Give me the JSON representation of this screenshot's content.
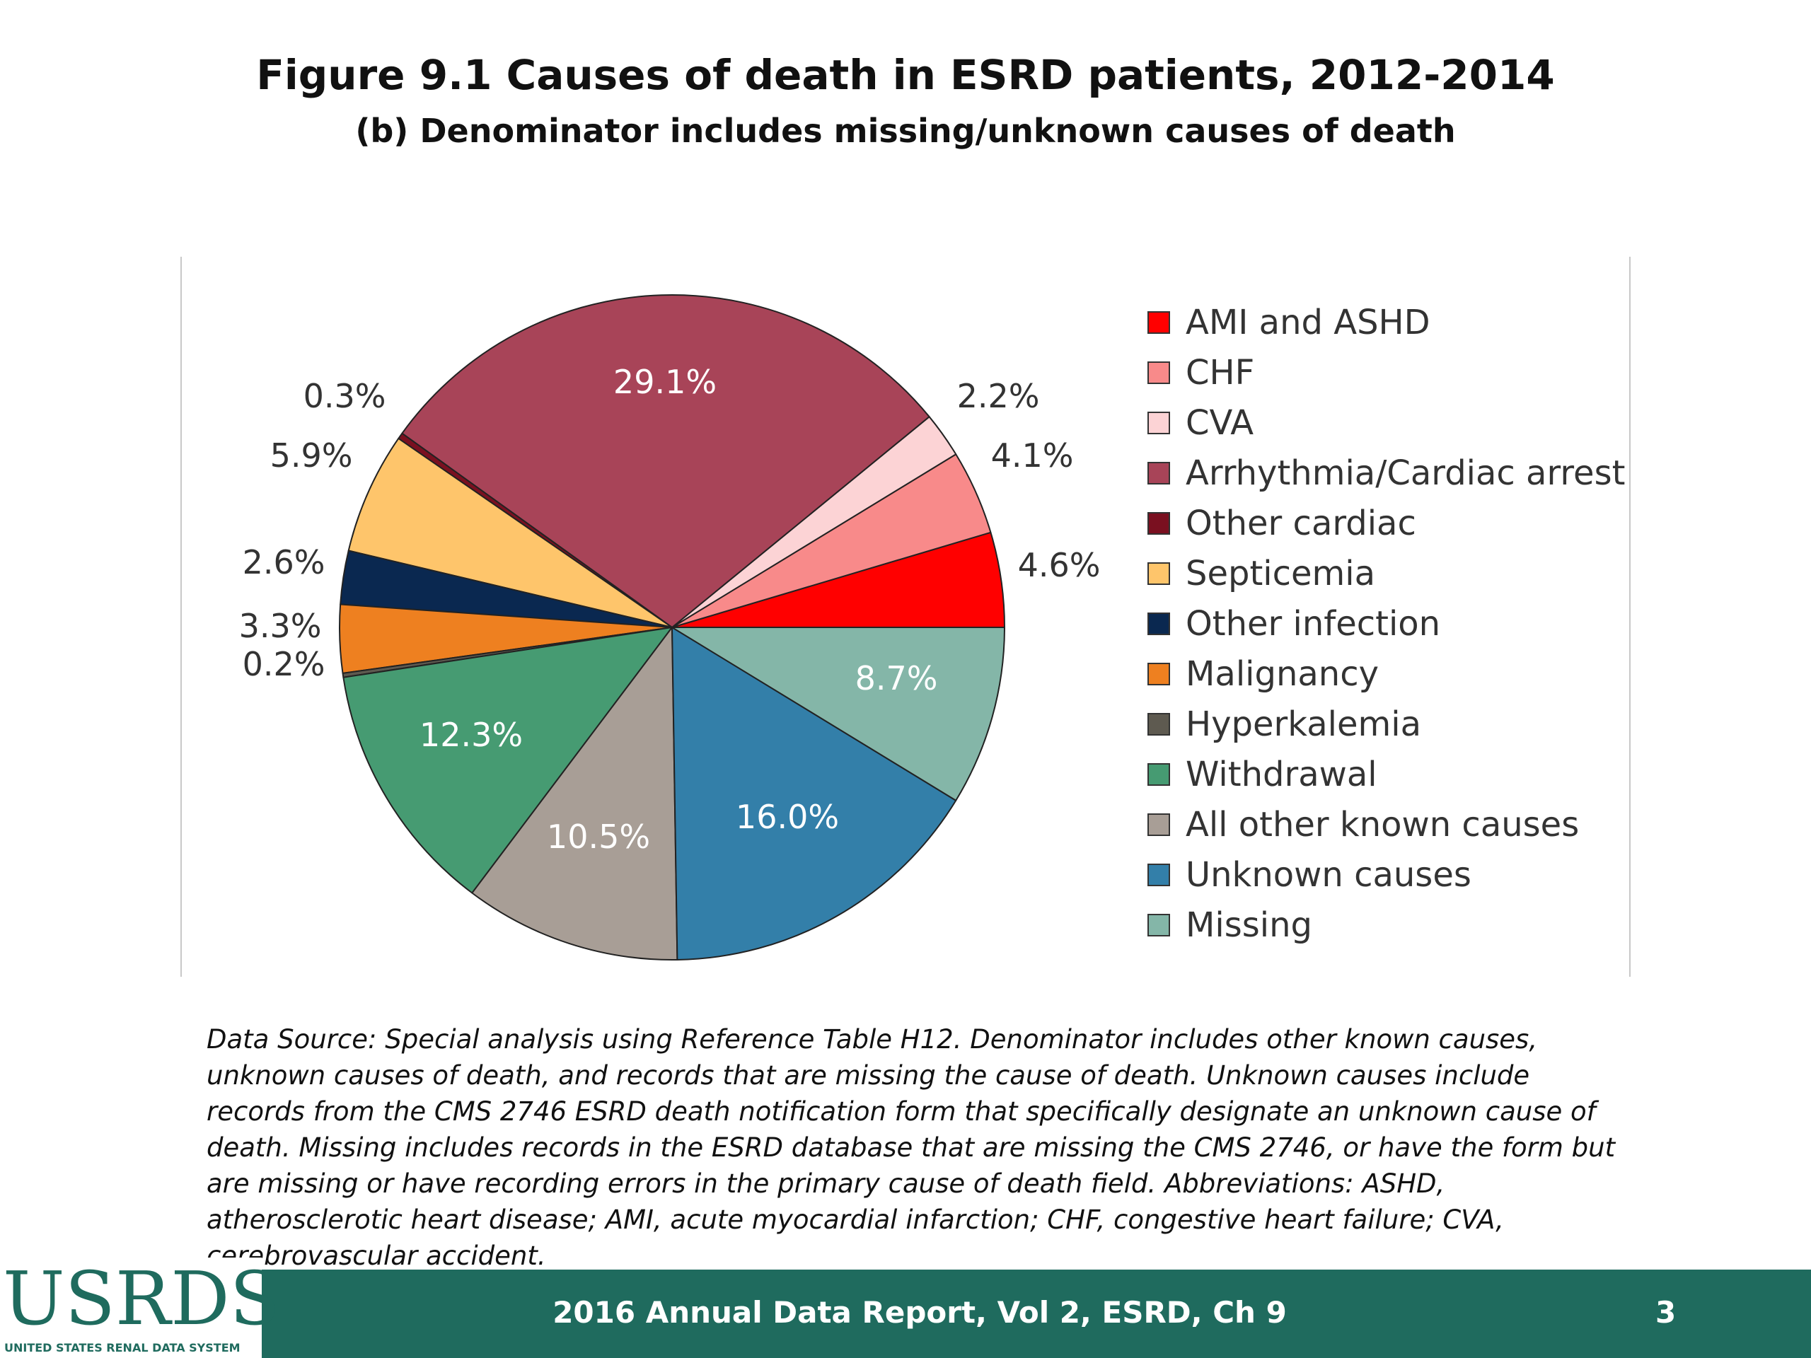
{
  "header": {
    "title": "Figure 9.1 Causes of death in ESRD patients, 2012-2014",
    "subtitle": "(b) Denominator includes missing/unknown causes of death"
  },
  "chart_data": {
    "type": "pie",
    "title": "Figure 9.1 Causes of death in ESRD patients, 2012-2014",
    "subtitle": "(b) Denominator includes missing/unknown causes of death",
    "legend_position": "right",
    "slices": [
      {
        "label": "AMI and ASHD",
        "value": 4.6,
        "value_label": "4.6%",
        "color": "#ff0000"
      },
      {
        "label": "CHF",
        "value": 4.1,
        "value_label": "4.1%",
        "color": "#f88a8a"
      },
      {
        "label": "CVA",
        "value": 2.2,
        "value_label": "2.2%",
        "color": "#fcd3d5"
      },
      {
        "label": "Arrhythmia/Cardiac arrest",
        "value": 29.1,
        "value_label": "29.1%",
        "color": "#a84458"
      },
      {
        "label": "Other cardiac",
        "value": 0.3,
        "value_label": "0.3%",
        "color": "#7a1020"
      },
      {
        "label": "Septicemia",
        "value": 5.9,
        "value_label": "5.9%",
        "color": "#fec56b"
      },
      {
        "label": "Other infection",
        "value": 2.6,
        "value_label": "2.6%",
        "color": "#0a2850"
      },
      {
        "label": "Malignancy",
        "value": 3.3,
        "value_label": "3.3%",
        "color": "#ee8020"
      },
      {
        "label": "Hyperkalemia",
        "value": 0.2,
        "value_label": "0.2%",
        "color": "#5e5a50"
      },
      {
        "label": "Withdrawal",
        "value": 12.3,
        "value_label": "12.3%",
        "color": "#469b72"
      },
      {
        "label": "All other known causes",
        "value": 10.5,
        "value_label": "10.5%",
        "color": "#a89e96"
      },
      {
        "label": "Unknown causes",
        "value": 16.0,
        "value_label": "16.0%",
        "color": "#337fa9"
      },
      {
        "label": "Missing",
        "value": 8.7,
        "value_label": "8.7%",
        "color": "#84b6a8"
      }
    ]
  },
  "source_note": "Data Source: Special analysis using Reference Table H12. Denominator includes other known causes, unknown causes of death, and records that are missing the cause of death. Unknown causes include records from the CMS 2746 ESRD death notification form that specifically designate an unknown cause of death. Missing includes records in the ESRD database that are missing the CMS 2746, or have the form but are missing or have recording errors in the primary cause of death field. Abbreviations: ASHD, atherosclerotic heart disease; AMI, acute myocardial infarction; CHF, congestive heart failure; CVA, cerebrovascular accident.",
  "footer": {
    "logo_text": "USRDS",
    "logo_subtext": "UNITED STATES RENAL DATA SYSTEM",
    "report_label": "2016 Annual Data Report, Vol 2, ESRD, Ch 9",
    "page_number": "3"
  },
  "colors": {
    "footer_bar": "#1f6b5e"
  }
}
